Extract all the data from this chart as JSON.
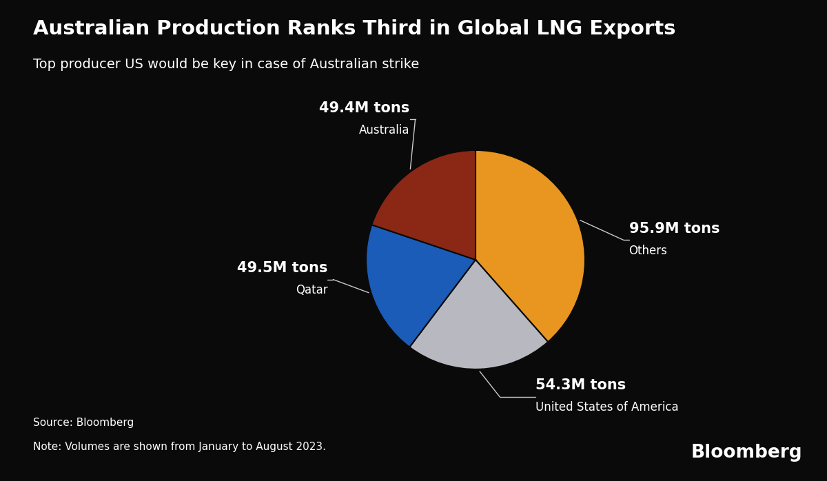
{
  "title": "Australian Production Ranks Third in Global LNG Exports",
  "subtitle": "Top producer US would be key in case of Australian strike",
  "source": "Source: Bloomberg",
  "note": "Note: Volumes are shown from January to August 2023.",
  "background_color": "#0a0a0a",
  "text_color": "#ffffff",
  "segments": [
    {
      "label": "Others",
      "value_label": "95.9M tons",
      "value": 95.9,
      "color": "#E89620"
    },
    {
      "label": "United States of America",
      "value_label": "54.3M tons",
      "value": 54.3,
      "color": "#B8B8C0"
    },
    {
      "label": "Qatar",
      "value_label": "49.5M tons",
      "value": 49.5,
      "color": "#1A5CB8"
    },
    {
      "label": "Australia",
      "value_label": "49.4M tons",
      "value": 49.4,
      "color": "#8B2815"
    }
  ],
  "title_fontsize": 21,
  "subtitle_fontsize": 14,
  "label_fontsize": 15,
  "sublabel_fontsize": 12,
  "source_fontsize": 11
}
